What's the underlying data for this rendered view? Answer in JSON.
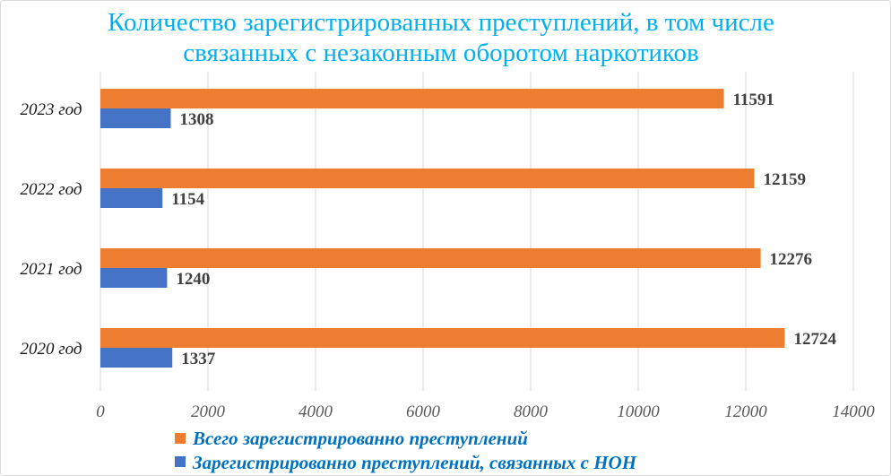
{
  "chart_data": {
    "type": "bar",
    "orientation": "horizontal",
    "title_lines": [
      "Количество зарегистрированных преступлений, в том числе",
      "связанных с незаконным оборотом наркотиков"
    ],
    "categories": [
      "2023 год",
      "2022 год",
      "2021 год",
      "2020 год"
    ],
    "series": [
      {
        "name": "Всего зарегистрированно преступлений",
        "color": "#ed7d31",
        "values": [
          11591,
          12159,
          12276,
          12724
        ]
      },
      {
        "name": "Зарегистрированно преступлений, связанных с НОН",
        "color": "#4472c4",
        "values": [
          1308,
          1154,
          1240,
          1337
        ]
      }
    ],
    "xlim": [
      0,
      14000
    ],
    "x_ticks": [
      0,
      2000,
      4000,
      6000,
      8000,
      10000,
      12000,
      14000
    ],
    "grid": true,
    "legend_position": "bottom"
  }
}
